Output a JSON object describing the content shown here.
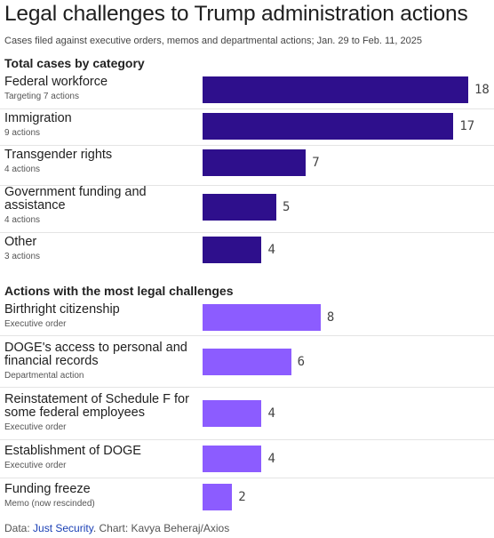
{
  "title": "Legal challenges to Trump administration actions",
  "subtitle": "Cases filed against executive orders, memos and departmental actions; Jan. 29 to Feb. 11, 2025",
  "footer": {
    "prefix": "Data: ",
    "source_link": "Just Security",
    "suffix": ". Chart: Kavya Beheraj/Axios"
  },
  "colors": {
    "category_bar": "#2e0f8c",
    "action_bar": "#8c5cff",
    "divider": "#e4e4e4",
    "link": "#1a3fb5"
  },
  "chart_data": [
    {
      "type": "bar",
      "orientation": "horizontal",
      "title": "Total cases by category",
      "categories": [
        "Federal workforce",
        "Immigration",
        "Transgender rights",
        "Government funding and assistance",
        "Other"
      ],
      "sublabels": [
        "Targeting 7 actions",
        "9 actions",
        "4 actions",
        "4 actions",
        "3 actions"
      ],
      "values": [
        18,
        17,
        7,
        5,
        4
      ],
      "xlim": [
        0,
        18
      ],
      "grid": false
    },
    {
      "type": "bar",
      "orientation": "horizontal",
      "title": "Actions with the most legal challenges",
      "categories": [
        "Birthright citizenship",
        "DOGE's access to personal and financial records",
        "Reinstatement of Schedule F for some federal employees",
        "Establishment of DOGE",
        "Funding freeze"
      ],
      "sublabels": [
        "Executive order",
        "Departmental action",
        "Executive order",
        "Executive order",
        "Memo (now rescinded)"
      ],
      "values": [
        8,
        6,
        4,
        4,
        2
      ],
      "xlim": [
        0,
        18
      ],
      "grid": false
    }
  ]
}
